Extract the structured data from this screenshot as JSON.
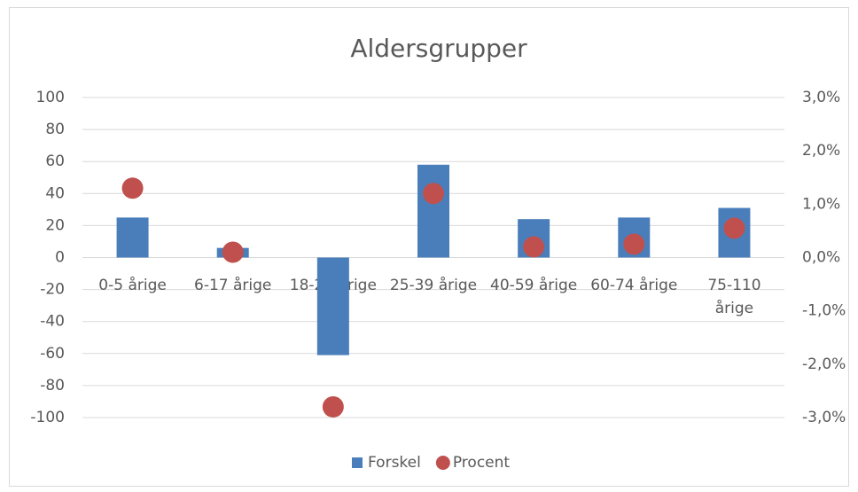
{
  "chart_data": {
    "type": "combo",
    "title": "Aldersgrupper",
    "categories": [
      "0-5 årige",
      "6-17 årige",
      "18-24 årige",
      "25-39 årige",
      "40-59 årige",
      "60-74 årige",
      "75-110 årige"
    ],
    "series": [
      {
        "name": "Forskel",
        "type": "bar",
        "color": "#4a7ebb",
        "values": [
          25,
          6,
          -61,
          58,
          24,
          25,
          31
        ]
      },
      {
        "name": "Procent",
        "type": "scatter",
        "axis": "y2",
        "color": "#c0504d",
        "values": [
          1.3,
          0.1,
          -2.8,
          1.2,
          0.2,
          0.25,
          0.55
        ]
      }
    ],
    "ylim": [
      -100,
      100
    ],
    "yticks": [
      -100,
      -80,
      -60,
      -40,
      -20,
      0,
      20,
      40,
      60,
      80,
      100
    ],
    "y2lim": [
      -3,
      3
    ],
    "y2ticks": [
      {
        "value": -3,
        "label": "-3,0%"
      },
      {
        "value": -2,
        "label": "-2,0%"
      },
      {
        "value": -1,
        "label": "-1,0%"
      },
      {
        "value": 0,
        "label": "0,0%"
      },
      {
        "value": 1,
        "label": "1,0%"
      },
      {
        "value": 2,
        "label": "2,0%"
      },
      {
        "value": 3,
        "label": "3,0%"
      }
    ],
    "grid": true,
    "legend": "bottom"
  }
}
